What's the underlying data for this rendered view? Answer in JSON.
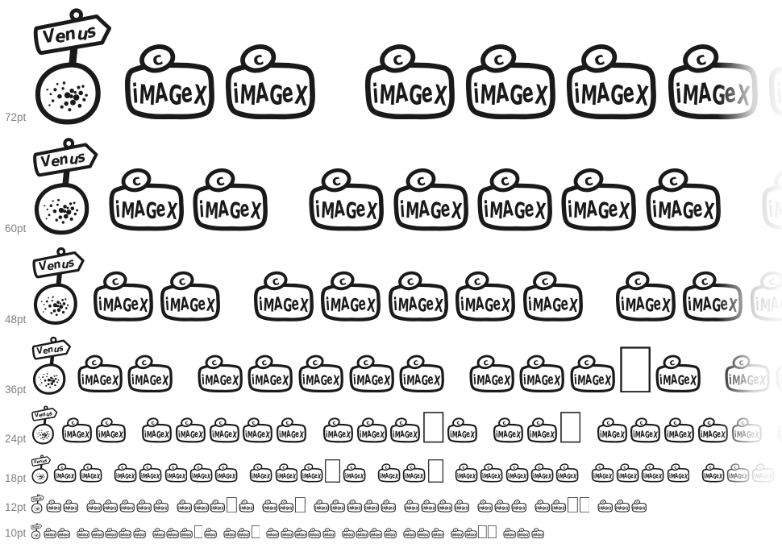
{
  "page": {
    "background_color": "#ffffff",
    "ink_color": "#1a1a1a",
    "label_color": "#828282"
  },
  "waterfall": {
    "sample_text": "The quick brown fox jumps over the lazy dog",
    "sizes": [
      {
        "label": "72pt",
        "pt": 72
      },
      {
        "label": "60pt",
        "pt": 60
      },
      {
        "label": "48pt",
        "pt": 48
      },
      {
        "label": "36pt",
        "pt": 36
      },
      {
        "label": "24pt",
        "pt": 24
      },
      {
        "label": "18pt",
        "pt": 18
      },
      {
        "label": "12pt",
        "pt": 12
      },
      {
        "label": "10pt",
        "pt": 10
      }
    ],
    "glyph_map": {
      "venus_chars": "T",
      "missing_chars": "wxyz"
    },
    "glyphs": {
      "venus_sign_text": "Venus",
      "badge_text": "iMAGeX",
      "badge_mark": "c"
    }
  }
}
